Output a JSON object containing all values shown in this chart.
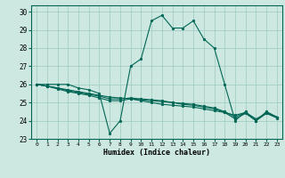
{
  "xlabel": "Humidex (Indice chaleur)",
  "xlim": [
    -0.5,
    23.5
  ],
  "ylim": [
    23,
    30.35
  ],
  "yticks": [
    23,
    24,
    25,
    26,
    27,
    28,
    29,
    30
  ],
  "xticks": [
    0,
    1,
    2,
    3,
    4,
    5,
    6,
    7,
    8,
    9,
    10,
    11,
    12,
    13,
    14,
    15,
    16,
    17,
    18,
    19,
    20,
    21,
    22,
    23
  ],
  "bg_color": "#cce8e0",
  "grid_color": "#9ec8be",
  "line_color": "#006655",
  "series": [
    [
      26.0,
      26.0,
      26.0,
      26.0,
      25.8,
      25.7,
      25.5,
      23.3,
      24.0,
      27.0,
      27.4,
      29.5,
      29.8,
      29.1,
      29.1,
      29.5,
      28.5,
      28.0,
      26.0,
      24.0,
      24.5,
      24.0,
      24.5,
      24.2
    ],
    [
      26.0,
      25.9,
      25.8,
      25.7,
      25.6,
      25.5,
      25.4,
      25.3,
      25.25,
      25.2,
      25.1,
      25.0,
      24.9,
      24.85,
      24.8,
      24.75,
      24.65,
      24.55,
      24.45,
      24.3,
      24.45,
      24.1,
      24.4,
      24.2
    ],
    [
      26.0,
      25.9,
      25.8,
      25.65,
      25.55,
      25.45,
      25.35,
      25.2,
      25.2,
      25.25,
      25.2,
      25.15,
      25.1,
      25.0,
      24.95,
      24.9,
      24.8,
      24.7,
      24.5,
      24.2,
      24.45,
      24.0,
      24.45,
      24.2
    ],
    [
      26.0,
      25.9,
      25.75,
      25.6,
      25.5,
      25.4,
      25.25,
      25.1,
      25.1,
      25.2,
      25.15,
      25.1,
      25.05,
      25.0,
      24.9,
      24.85,
      24.75,
      24.65,
      24.45,
      24.1,
      24.4,
      24.0,
      24.4,
      24.15
    ]
  ]
}
